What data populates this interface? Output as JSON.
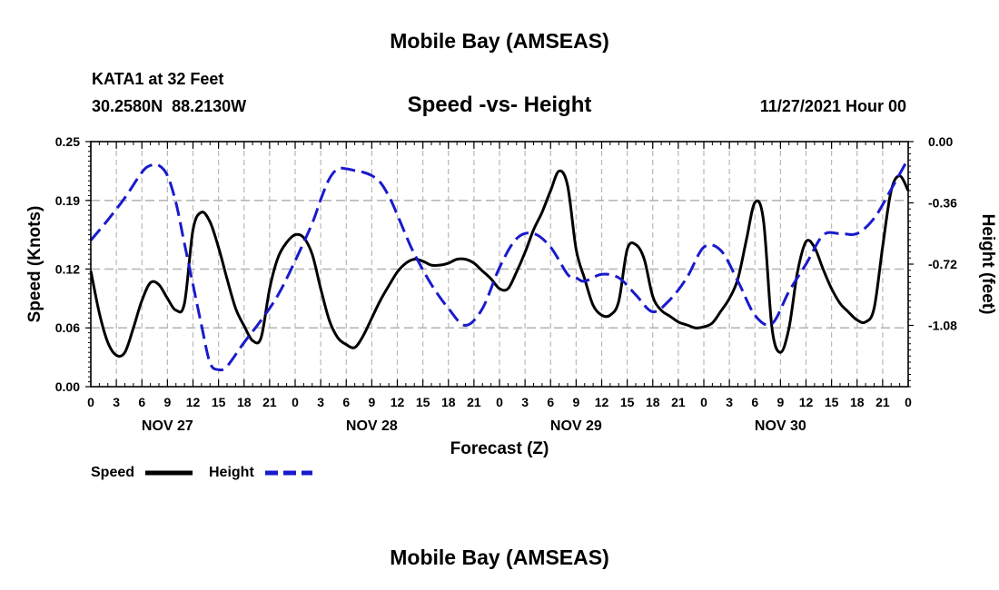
{
  "page": {
    "title_top": "Mobile Bay (AMSEAS)",
    "title_bottom": "Mobile Bay (AMSEAS)",
    "station": "KATA1 at 32 Feet",
    "coords": "30.2580N  88.2130W",
    "subtitle": "Speed -vs- Height",
    "datetime": "11/27/2021 Hour 00"
  },
  "chart_data": {
    "type": "line",
    "title": "Speed -vs- Height",
    "xlabel": "Forecast (Z)",
    "ylabel": "Speed (Knots)",
    "y2label": "Height (feet)",
    "xlim": [
      0,
      96
    ],
    "ylim": [
      0,
      0.25
    ],
    "y2lim": [
      -1.44,
      0
    ],
    "grid": true,
    "x_ticks": [
      0,
      3,
      6,
      9,
      12,
      15,
      18,
      21,
      24,
      27,
      30,
      33,
      36,
      39,
      42,
      45,
      48,
      51,
      54,
      57,
      60,
      63,
      66,
      69,
      72,
      75,
      78,
      81,
      84,
      87,
      90,
      93,
      96
    ],
    "x_tick_labels": [
      "0",
      "3",
      "6",
      "9",
      "12",
      "15",
      "18",
      "21",
      "0",
      "3",
      "6",
      "9",
      "12",
      "15",
      "18",
      "21",
      "0",
      "3",
      "6",
      "9",
      "12",
      "15",
      "18",
      "21",
      "0",
      "3",
      "6",
      "9",
      "12",
      "15",
      "18",
      "21",
      "0"
    ],
    "day_labels": [
      {
        "label": "NOV 27",
        "hour": 9
      },
      {
        "label": "NOV 28",
        "hour": 33
      },
      {
        "label": "NOV 29",
        "hour": 57
      },
      {
        "label": "NOV 30",
        "hour": 81
      }
    ],
    "y_ticks": [
      0,
      0.06,
      0.12,
      0.19,
      0.25
    ],
    "y_tick_labels": [
      "0.00",
      "0.06",
      "0.12",
      "0.19",
      "0.25"
    ],
    "y2_ticks": [
      0,
      -0.36,
      -0.72,
      -1.08
    ],
    "y2_tick_labels": [
      "0.00",
      "-0.36",
      "-0.72",
      "-1.08"
    ],
    "series": [
      {
        "name": "Speed",
        "axis": "left",
        "color": "#000000",
        "dash": "solid",
        "x": [
          0,
          1,
          2,
          3,
          4,
          5,
          6,
          7,
          8,
          9,
          10,
          11,
          12,
          13,
          14,
          15,
          16,
          17,
          18,
          19,
          20,
          21,
          22,
          23,
          24,
          25,
          26,
          27,
          28,
          29,
          30,
          31,
          32,
          33,
          34,
          35,
          36,
          37,
          38,
          39,
          40,
          41,
          42,
          43,
          44,
          45,
          46,
          47,
          48,
          49,
          50,
          51,
          52,
          53,
          54,
          55,
          56,
          57,
          58,
          59,
          60,
          61,
          62,
          63,
          64,
          65,
          66,
          67,
          68,
          69,
          70,
          71,
          72,
          73,
          74,
          75,
          76,
          77,
          78,
          79,
          80,
          81,
          82,
          83,
          84,
          85,
          86,
          87,
          88,
          89,
          90,
          91,
          92,
          93,
          94,
          95,
          96
        ],
        "values": [
          0.118,
          0.075,
          0.045,
          0.032,
          0.035,
          0.06,
          0.088,
          0.106,
          0.104,
          0.09,
          0.078,
          0.085,
          0.16,
          0.178,
          0.168,
          0.142,
          0.11,
          0.08,
          0.062,
          0.047,
          0.05,
          0.1,
          0.132,
          0.147,
          0.155,
          0.152,
          0.135,
          0.1,
          0.068,
          0.05,
          0.043,
          0.04,
          0.052,
          0.07,
          0.088,
          0.103,
          0.117,
          0.126,
          0.13,
          0.128,
          0.124,
          0.124,
          0.126,
          0.13,
          0.13,
          0.126,
          0.118,
          0.11,
          0.1,
          0.1,
          0.117,
          0.137,
          0.16,
          0.178,
          0.2,
          0.22,
          0.205,
          0.14,
          0.11,
          0.083,
          0.073,
          0.073,
          0.087,
          0.14,
          0.145,
          0.13,
          0.092,
          0.078,
          0.072,
          0.066,
          0.063,
          0.06,
          0.061,
          0.065,
          0.077,
          0.09,
          0.11,
          0.15,
          0.188,
          0.17,
          0.06,
          0.035,
          0.06,
          0.117,
          0.148,
          0.142,
          0.12,
          0.1,
          0.085,
          0.076,
          0.068,
          0.066,
          0.08,
          0.143,
          0.2,
          0.215,
          0.2
        ]
      },
      {
        "name": "Height",
        "axis": "right",
        "color": "#1a1acc",
        "dash": "dashed",
        "x": [
          0,
          2,
          4,
          6,
          7,
          8,
          9,
          10,
          11,
          12,
          13,
          14,
          15,
          16,
          18,
          20,
          22,
          24,
          26,
          27,
          28,
          29,
          30,
          31,
          32,
          33,
          34,
          35,
          36,
          37,
          38,
          40,
          42,
          44,
          46,
          48,
          50,
          52,
          54,
          56,
          57,
          58,
          60,
          62,
          64,
          66,
          68,
          70,
          72,
          74,
          76,
          78,
          80,
          82,
          84,
          86,
          88,
          90,
          92,
          94,
          96
        ],
        "values": [
          -0.58,
          -0.46,
          -0.33,
          -0.18,
          -0.14,
          -0.14,
          -0.2,
          -0.36,
          -0.6,
          -0.84,
          -1.08,
          -1.3,
          -1.34,
          -1.32,
          -1.18,
          -1.05,
          -0.9,
          -0.7,
          -0.48,
          -0.34,
          -0.22,
          -0.16,
          -0.16,
          -0.17,
          -0.18,
          -0.2,
          -0.24,
          -0.32,
          -0.43,
          -0.55,
          -0.66,
          -0.84,
          -0.98,
          -1.08,
          -0.98,
          -0.74,
          -0.57,
          -0.54,
          -0.62,
          -0.78,
          -0.8,
          -0.82,
          -0.78,
          -0.8,
          -0.9,
          -1.0,
          -0.93,
          -0.8,
          -0.62,
          -0.64,
          -0.82,
          -1.02,
          -1.07,
          -0.88,
          -0.72,
          -0.55,
          -0.54,
          -0.54,
          -0.45,
          -0.28,
          -0.1
        ]
      }
    ],
    "legend": {
      "position": "bottom-left",
      "items": [
        {
          "label": "Speed",
          "color": "#000000",
          "dash": "solid"
        },
        {
          "label": "Height",
          "color": "#1a1acc",
          "dash": "dashed"
        }
      ]
    }
  }
}
